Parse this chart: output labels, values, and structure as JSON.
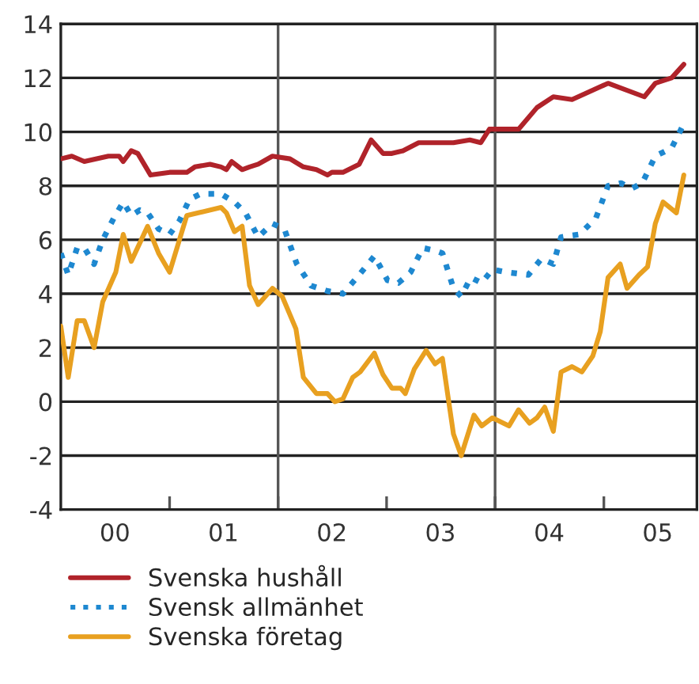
{
  "chart_data": {
    "type": "line",
    "xlim": [
      "2000-01-01",
      "2005-11-10"
    ],
    "ylim": [
      -4,
      14
    ],
    "yticks": [
      -4,
      -2,
      0,
      2,
      4,
      6,
      8,
      10,
      12,
      14
    ],
    "xticks": [
      {
        "value": "2000-07-01",
        "label": "00"
      },
      {
        "value": "2001-07-01",
        "label": "01"
      },
      {
        "value": "2002-07-01",
        "label": "02"
      },
      {
        "value": "2003-07-01",
        "label": "03"
      },
      {
        "value": "2004-07-01",
        "label": "04"
      },
      {
        "value": "2005-07-01",
        "label": "05"
      },
      {
        "value": "2001-01-01",
        "label": null
      },
      {
        "value": "2002-01-01",
        "label": null
      },
      {
        "value": "2003-01-01",
        "label": null
      },
      {
        "value": "2004-01-01",
        "label": null
      },
      {
        "value": "2005-01-01",
        "label": null
      }
    ],
    "grid": "y",
    "legend": "bottom",
    "ref_lines": [
      {
        "axis": "x",
        "value": "2002-01-01",
        "color": "#555555"
      },
      {
        "axis": "x",
        "value": "2004-01-01",
        "color": "#555555"
      }
    ],
    "series": [
      {
        "name": "Svenska hushåll",
        "color": "#b0232a",
        "line_style": "solid",
        "x": [
          "2000-01-01",
          "2000-02-07",
          "2000-03-20",
          "2000-06-09",
          "2000-07-15",
          "2000-07-29",
          "2000-08-25",
          "2000-09-16",
          "2000-10-29",
          "2001-01-01",
          "2001-02-28",
          "2001-03-27",
          "2001-05-17",
          "2001-06-23",
          "2001-07-11",
          "2001-07-29",
          "2001-09-02",
          "2001-09-27",
          "2001-10-26",
          "2001-12-13",
          "2002-02-10",
          "2002-03-27",
          "2002-05-10",
          "2002-06-16",
          "2002-07-01",
          "2002-08-07",
          "2002-10-01",
          "2002-11-10",
          "2002-12-20",
          "2003-01-19",
          "2003-02-25",
          "2003-04-19",
          "2003-06-13",
          "2003-08-14",
          "2003-10-08",
          "2003-11-14",
          "2003-12-13",
          "2004-03-20",
          "2004-05-21",
          "2004-07-15",
          "2004-09-16",
          "2005-01-15",
          "2005-05-17",
          "2005-06-23",
          "2005-08-17",
          "2005-09-27"
        ],
        "values": [
          9.0,
          9.1,
          8.9,
          9.1,
          9.1,
          8.9,
          9.3,
          9.2,
          8.4,
          8.5,
          8.5,
          8.7,
          8.8,
          8.7,
          8.6,
          8.9,
          8.6,
          8.7,
          8.8,
          9.1,
          9.0,
          8.7,
          8.6,
          8.4,
          8.5,
          8.5,
          8.8,
          9.7,
          9.2,
          9.2,
          9.3,
          9.6,
          9.6,
          9.6,
          9.7,
          9.6,
          10.1,
          10.1,
          10.9,
          11.3,
          11.2,
          11.8,
          11.3,
          11.8,
          12.0,
          12.5
        ]
      },
      {
        "name": "Svensk allmänhet",
        "color": "#1e88d0",
        "line_style": "dotted",
        "x": [
          "2000-01-01",
          "2000-01-26",
          "2000-02-25",
          "2000-03-20",
          "2000-04-22",
          "2000-05-21",
          "2000-06-27",
          "2000-07-29",
          "2000-08-25",
          "2000-09-23",
          "2000-10-19",
          "2000-11-25",
          "2001-01-01",
          "2001-02-03",
          "2001-03-09",
          "2001-04-15",
          "2001-06-23",
          "2001-08-07",
          "2001-09-13",
          "2001-10-26",
          "2001-12-13",
          "2002-01-22",
          "2002-03-05",
          "2002-04-22",
          "2002-06-16",
          "2002-08-07",
          "2002-10-01",
          "2002-11-21",
          "2003-01-04",
          "2003-02-10",
          "2003-03-23",
          "2003-05-03",
          "2003-06-13",
          "2003-07-08",
          "2003-08-14",
          "2003-09-09",
          "2003-10-11",
          "2003-11-17",
          "2003-12-23",
          "2004-02-07",
          "2004-04-22",
          "2004-06-05",
          "2004-07-15",
          "2004-08-10",
          "2004-10-11",
          "2004-12-05",
          "2005-01-15",
          "2005-02-28",
          "2005-04-04",
          "2005-05-10",
          "2005-06-23",
          "2005-08-17",
          "2005-09-27"
        ],
        "values": [
          5.5,
          4.7,
          5.7,
          5.7,
          5.1,
          6.0,
          6.8,
          7.4,
          6.9,
          7.1,
          7.0,
          6.4,
          6.2,
          6.7,
          7.5,
          7.7,
          7.7,
          7.4,
          7.0,
          6.1,
          6.6,
          6.4,
          5.1,
          4.3,
          4.1,
          4.0,
          4.7,
          5.4,
          4.5,
          4.4,
          4.8,
          5.7,
          5.6,
          5.5,
          4.2,
          3.9,
          4.6,
          4.4,
          4.9,
          4.8,
          4.7,
          5.3,
          5.1,
          6.1,
          6.2,
          6.8,
          8.0,
          8.1,
          7.9,
          8.1,
          9.1,
          9.4,
          10.3
        ]
      },
      {
        "name": "Svenska företag",
        "color": "#e8a020",
        "line_style": "solid",
        "x": [
          "2000-01-01",
          "2000-01-26",
          "2000-02-25",
          "2000-03-20",
          "2000-04-22",
          "2000-05-21",
          "2000-07-04",
          "2000-07-29",
          "2000-08-25",
          "2000-10-19",
          "2000-11-25",
          "2001-01-01",
          "2001-02-28",
          "2001-04-08",
          "2001-06-23",
          "2001-07-11",
          "2001-08-07",
          "2001-09-02",
          "2001-09-27",
          "2001-10-26",
          "2001-12-13",
          "2002-01-15",
          "2002-03-02",
          "2002-03-27",
          "2002-05-10",
          "2002-06-16",
          "2002-07-11",
          "2002-08-07",
          "2002-09-09",
          "2002-10-04",
          "2002-11-21",
          "2002-12-20",
          "2003-01-19",
          "2003-02-17",
          "2003-03-05",
          "2003-04-04",
          "2003-05-14",
          "2003-06-13",
          "2003-07-08",
          "2003-08-14",
          "2003-09-09",
          "2003-10-22",
          "2003-11-17",
          "2003-12-23",
          "2004-02-17",
          "2004-03-20",
          "2004-04-26",
          "2004-05-21",
          "2004-06-16",
          "2004-07-15",
          "2004-08-10",
          "2004-09-16",
          "2004-10-19",
          "2004-11-25",
          "2004-12-20",
          "2005-01-15",
          "2005-02-25",
          "2005-03-20",
          "2005-04-29",
          "2005-05-28",
          "2005-06-23",
          "2005-07-19",
          "2005-09-02",
          "2005-09-27"
        ],
        "values": [
          2.8,
          0.9,
          3.0,
          3.0,
          2.0,
          3.7,
          4.8,
          6.2,
          5.2,
          6.5,
          5.5,
          4.8,
          6.9,
          7.0,
          7.2,
          7.0,
          6.3,
          6.5,
          4.3,
          3.6,
          4.2,
          3.9,
          2.7,
          0.9,
          0.3,
          0.3,
          0.0,
          0.1,
          0.9,
          1.1,
          1.8,
          1.0,
          0.5,
          0.5,
          0.3,
          1.2,
          1.9,
          1.4,
          1.6,
          -1.2,
          -2.0,
          -0.5,
          -0.9,
          -0.6,
          -0.9,
          -0.3,
          -0.8,
          -0.6,
          -0.2,
          -1.1,
          1.1,
          1.3,
          1.1,
          1.7,
          2.6,
          4.6,
          5.1,
          4.2,
          4.7,
          5.0,
          6.6,
          7.4,
          7.0,
          8.4
        ]
      }
    ]
  }
}
